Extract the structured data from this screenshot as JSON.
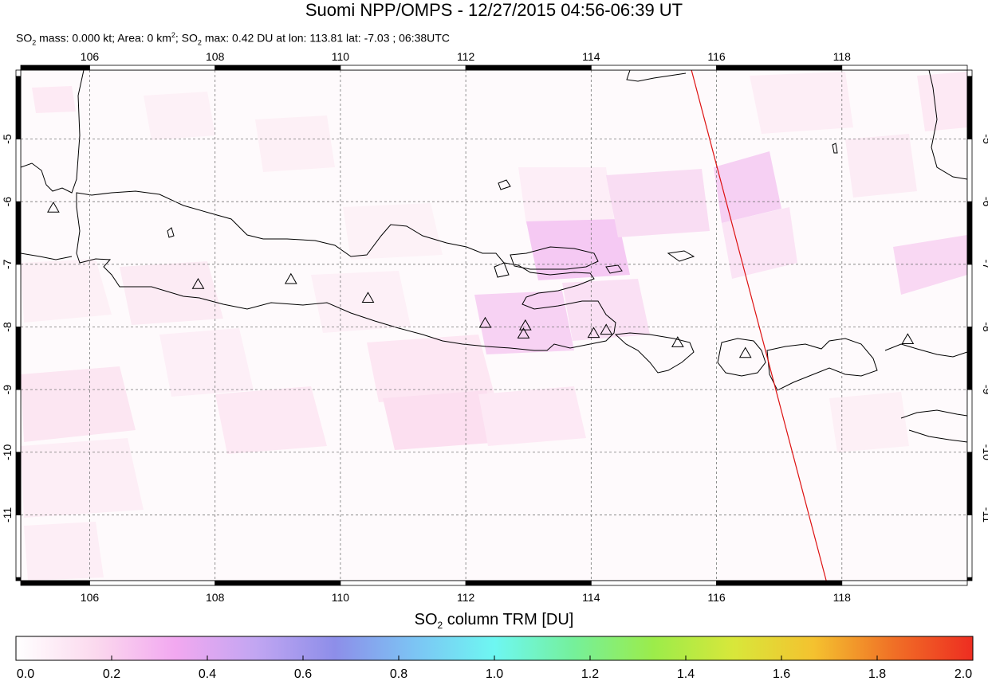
{
  "header": {
    "title": "Suomi NPP/OMPS - 12/27/2015 04:56-06:39 UT",
    "stats": {
      "mass_label": "SO",
      "mass_sub": "2",
      "mass_text": " mass: 0.000 kt; Area: 0 km",
      "area_sup": "2",
      "max_label": "; SO",
      "max_sub": "2",
      "max_text": " max: 0.42 DU at lon: 113.81 lat: -7.03 ; 06:38UTC"
    }
  },
  "map": {
    "lon_range": [
      104.9,
      120.0
    ],
    "lat_range": [
      -12.05,
      -3.9
    ],
    "lon_ticks": [
      "106",
      "108",
      "110",
      "112",
      "114",
      "116",
      "118"
    ],
    "lat_ticks": [
      "-5",
      "-6",
      "-7",
      "-8",
      "-9",
      "-10",
      "-11"
    ],
    "grid": "dashed",
    "volcanoes": [
      {
        "lon": 105.42,
        "lat": -6.1
      },
      {
        "lon": 107.73,
        "lat": -7.32
      },
      {
        "lon": 109.21,
        "lat": -7.24
      },
      {
        "lon": 110.44,
        "lat": -7.54
      },
      {
        "lon": 112.31,
        "lat": -7.94
      },
      {
        "lon": 112.95,
        "lat": -7.98
      },
      {
        "lon": 112.92,
        "lat": -8.11
      },
      {
        "lon": 114.04,
        "lat": -8.1
      },
      {
        "lon": 114.24,
        "lat": -8.05
      },
      {
        "lon": 115.38,
        "lat": -8.25
      },
      {
        "lon": 116.46,
        "lat": -8.42
      },
      {
        "lon": 119.05,
        "lat": -8.2
      }
    ],
    "orbit_track": {
      "color": "#dd1111",
      "start": {
        "lon": 115.6,
        "lat": -3.9
      },
      "end": {
        "lon": 117.75,
        "lat": -12.05
      }
    }
  },
  "colorbar": {
    "title_main": "SO",
    "title_sub": "2",
    "title_rest": " column TRM [DU]",
    "ticks": [
      "0.0",
      "0.2",
      "0.4",
      "0.6",
      "0.8",
      "1.0",
      "1.2",
      "1.4",
      "1.6",
      "1.8",
      "2.0"
    ],
    "range": [
      0.0,
      2.0
    ],
    "colors": [
      "#ffffff",
      "#fbd9ee",
      "#f2a8f0",
      "#c2a6f2",
      "#8d8ee9",
      "#7cc4f4",
      "#6ef7f2",
      "#75f09a",
      "#9cec4a",
      "#d8e73a",
      "#f4c22f",
      "#f07026",
      "#ee2d21"
    ]
  }
}
